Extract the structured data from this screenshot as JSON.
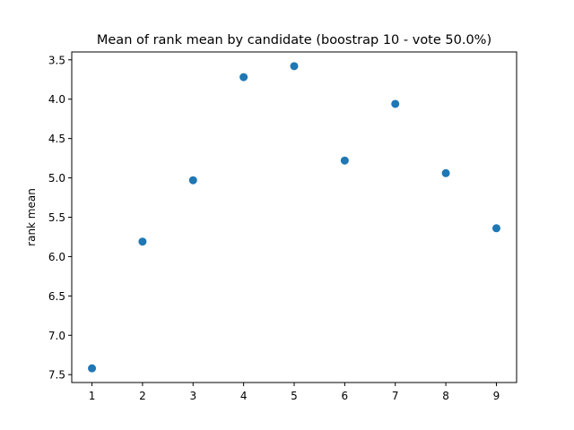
{
  "chart_data": {
    "type": "scatter",
    "title": "Mean of rank mean by candidate (boostrap 10 - vote 50.0%)",
    "xlabel": "",
    "ylabel": "rank mean",
    "x": [
      1,
      2,
      3,
      4,
      5,
      6,
      7,
      8,
      9
    ],
    "y": [
      7.42,
      5.81,
      5.03,
      3.72,
      3.58,
      4.78,
      4.06,
      4.94,
      5.64
    ],
    "xlim": [
      0.6,
      9.4
    ],
    "ylim": [
      7.6,
      3.4
    ],
    "y_inverted": true,
    "xticks": [
      "1",
      "2",
      "3",
      "4",
      "5",
      "6",
      "7",
      "8",
      "9"
    ],
    "yticks": [
      "3.5",
      "4.0",
      "4.5",
      "5.0",
      "5.5",
      "6.0",
      "6.5",
      "7.0",
      "7.5"
    ],
    "marker_color": "#1f77b4",
    "grid": false,
    "legend": "none"
  }
}
